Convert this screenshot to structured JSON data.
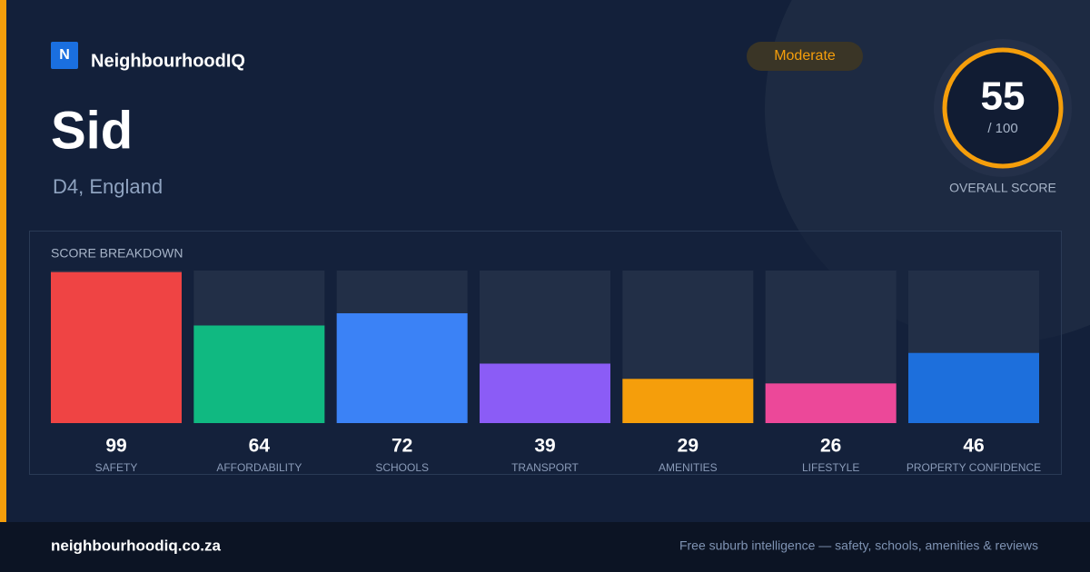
{
  "brand": {
    "logo": "N",
    "name": "NeighbourhoodIQ"
  },
  "badge": "Moderate",
  "title": "Sid",
  "subtitle": "D4, England",
  "score": {
    "value": 55,
    "max_label": "/ 100",
    "label": "OVERALL SCORE"
  },
  "chart_data": {
    "type": "bar",
    "title": "SCORE BREAKDOWN",
    "categories": [
      "SAFETY",
      "AFFORDABILITY",
      "SCHOOLS",
      "TRANSPORT",
      "AMENITIES",
      "LIFESTYLE",
      "PROPERTY CONFIDENCE"
    ],
    "values": [
      99,
      64,
      72,
      39,
      29,
      26,
      46
    ],
    "colors": [
      "#ef4444",
      "#10b981",
      "#3b82f6",
      "#8b5cf6",
      "#f59e0b",
      "#ec4899",
      "#1d6fdc"
    ],
    "ylim": [
      0,
      100
    ]
  },
  "footer": {
    "site": "neighbourhoodiq.co.za",
    "tagline": "Free suburb intelligence — safety, schools, amenities & reviews"
  }
}
